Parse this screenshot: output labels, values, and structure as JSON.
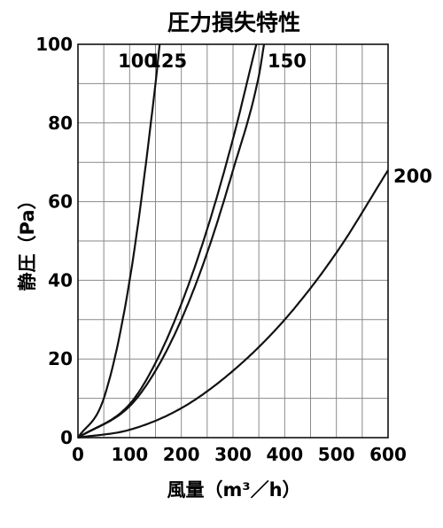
{
  "chart_data": {
    "type": "line",
    "title": "圧力損失特性",
    "xlabel": "風量（m³／h）",
    "ylabel": "静圧（Pa）",
    "xlim": [
      0,
      600
    ],
    "ylim": [
      0,
      100
    ],
    "x_ticks": [
      "0",
      "100",
      "200",
      "300",
      "400",
      "500",
      "600"
    ],
    "y_ticks": [
      "0",
      "20",
      "40",
      "60",
      "80",
      "100"
    ],
    "grid": true,
    "series": [
      {
        "name": "100",
        "x": [
          0,
          50,
          100,
          150,
          158
        ],
        "y": [
          0,
          10,
          40,
          90,
          100
        ]
      },
      {
        "name": "125",
        "x": [
          0,
          100,
          150,
          200,
          250,
          300,
          345
        ],
        "y": [
          0,
          8.5,
          19,
          34,
          53,
          76,
          100
        ]
      },
      {
        "name": "150",
        "x": [
          0,
          100,
          150,
          200,
          250,
          300,
          350,
          360
        ],
        "y": [
          0,
          8,
          17,
          30,
          47,
          68,
          92,
          100
        ]
      },
      {
        "name": "200",
        "x": [
          0,
          100,
          200,
          300,
          400,
          500,
          600
        ],
        "y": [
          0,
          2,
          7.5,
          17,
          30,
          47,
          68
        ]
      }
    ]
  }
}
